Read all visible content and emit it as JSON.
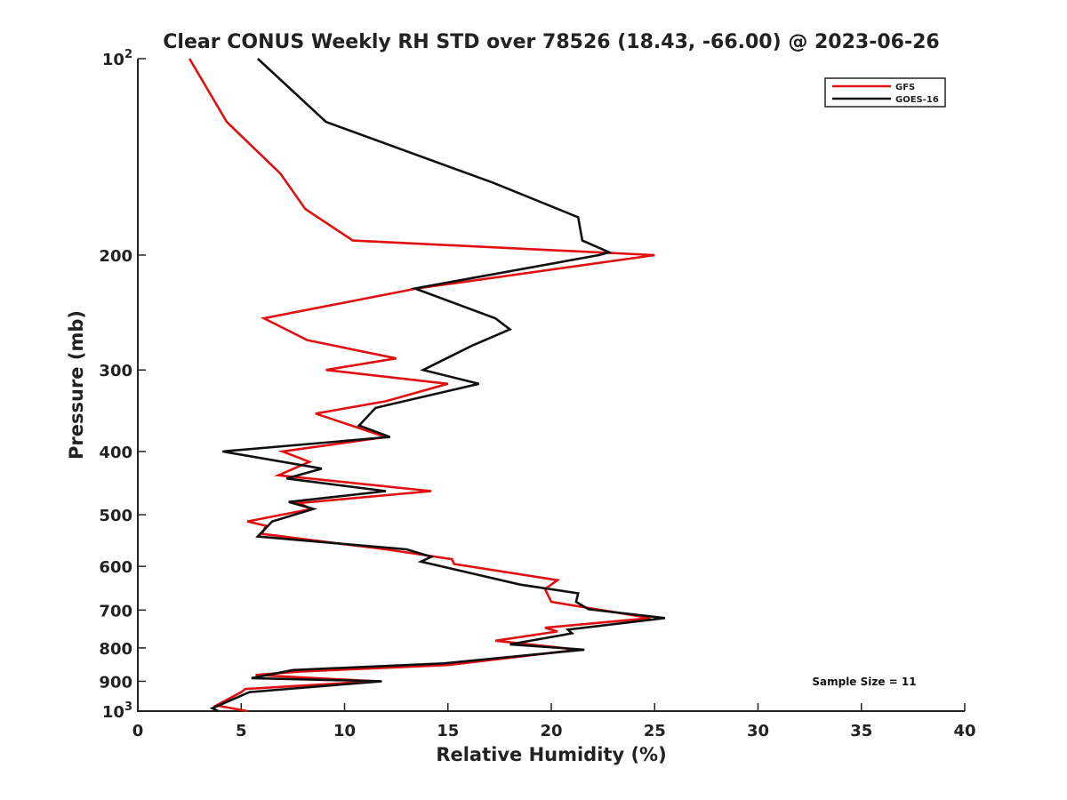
{
  "chart_data": {
    "type": "line",
    "title": "Clear CONUS Weekly RH STD over 78526 (18.43, -66.00) @ 2023-06-26",
    "xlabel": "Relative Humidity (%)",
    "ylabel": "Pressure (mb)",
    "xlim": [
      0,
      40
    ],
    "ylim": [
      100,
      1000
    ],
    "y_scale": "log",
    "y_reversed": true,
    "x_ticks": [
      "0",
      "5",
      "10",
      "15",
      "20",
      "25",
      "30",
      "35",
      "40"
    ],
    "y_ticks": [
      {
        "value": 100,
        "base": "10",
        "exp": "2"
      },
      {
        "value": 200,
        "label": "200"
      },
      {
        "value": 300,
        "label": "300"
      },
      {
        "value": 400,
        "label": "400"
      },
      {
        "value": 500,
        "label": "500"
      },
      {
        "value": 600,
        "label": "600"
      },
      {
        "value": 700,
        "label": "700"
      },
      {
        "value": 800,
        "label": "800"
      },
      {
        "value": 900,
        "label": "900"
      },
      {
        "value": 1000,
        "base": "10",
        "exp": "3"
      }
    ],
    "legend_position": "top-right",
    "annotation": "Sample Size = 11",
    "series": [
      {
        "name": "GFS",
        "color": "#e01010",
        "points": [
          [
            2.5,
            100
          ],
          [
            4.3,
            125
          ],
          [
            6.9,
            150
          ],
          [
            8.1,
            170
          ],
          [
            10.4,
            190
          ],
          [
            25.0,
            200
          ],
          [
            13.5,
            225
          ],
          [
            6.1,
            250
          ],
          [
            8.2,
            270
          ],
          [
            12.5,
            288
          ],
          [
            9.1,
            300
          ],
          [
            15.0,
            315
          ],
          [
            12.0,
            335
          ],
          [
            8.6,
            350
          ],
          [
            12.0,
            380
          ],
          [
            7.0,
            400
          ],
          [
            8.3,
            415
          ],
          [
            6.8,
            435
          ],
          [
            14.2,
            460
          ],
          [
            7.8,
            480
          ],
          [
            8.4,
            490
          ],
          [
            5.3,
            512
          ],
          [
            6.2,
            520
          ],
          [
            6.0,
            535
          ],
          [
            12.0,
            565
          ],
          [
            15.2,
            585
          ],
          [
            15.3,
            595
          ],
          [
            20.3,
            630
          ],
          [
            19.7,
            650
          ],
          [
            20.0,
            680
          ],
          [
            24.8,
            720
          ],
          [
            19.7,
            745
          ],
          [
            20.3,
            755
          ],
          [
            17.3,
            780
          ],
          [
            21.3,
            805
          ],
          [
            15.0,
            850
          ],
          [
            7.8,
            870
          ],
          [
            5.7,
            880
          ],
          [
            11.5,
            900
          ],
          [
            5.2,
            925
          ],
          [
            5.0,
            935
          ],
          [
            3.8,
            980
          ],
          [
            5.3,
            1000
          ]
        ]
      },
      {
        "name": "GOES-16",
        "color": "#101010",
        "points": [
          [
            5.8,
            100
          ],
          [
            9.1,
            125
          ],
          [
            17.2,
            155
          ],
          [
            21.3,
            175
          ],
          [
            21.5,
            190
          ],
          [
            22.8,
            198
          ],
          [
            22.3,
            200
          ],
          [
            13.4,
            225
          ],
          [
            17.3,
            250
          ],
          [
            18.0,
            260
          ],
          [
            16.2,
            275
          ],
          [
            13.8,
            300
          ],
          [
            16.5,
            315
          ],
          [
            12.0,
            340
          ],
          [
            11.5,
            343
          ],
          [
            10.7,
            365
          ],
          [
            12.2,
            380
          ],
          [
            4.1,
            400
          ],
          [
            8.9,
            425
          ],
          [
            7.2,
            440
          ],
          [
            12.0,
            460
          ],
          [
            7.3,
            478
          ],
          [
            8.5,
            490
          ],
          [
            6.5,
            512
          ],
          [
            5.8,
            540
          ],
          [
            13.0,
            565
          ],
          [
            14.2,
            580
          ],
          [
            13.7,
            590
          ],
          [
            18.5,
            640
          ],
          [
            21.3,
            660
          ],
          [
            21.2,
            680
          ],
          [
            21.8,
            698
          ],
          [
            25.5,
            720
          ],
          [
            20.8,
            750
          ],
          [
            21.0,
            760
          ],
          [
            18.0,
            790
          ],
          [
            21.6,
            805
          ],
          [
            14.8,
            845
          ],
          [
            7.5,
            865
          ],
          [
            5.5,
            890
          ],
          [
            11.8,
            900
          ],
          [
            5.4,
            935
          ],
          [
            3.6,
            990
          ],
          [
            3.9,
            1000
          ]
        ]
      }
    ]
  }
}
